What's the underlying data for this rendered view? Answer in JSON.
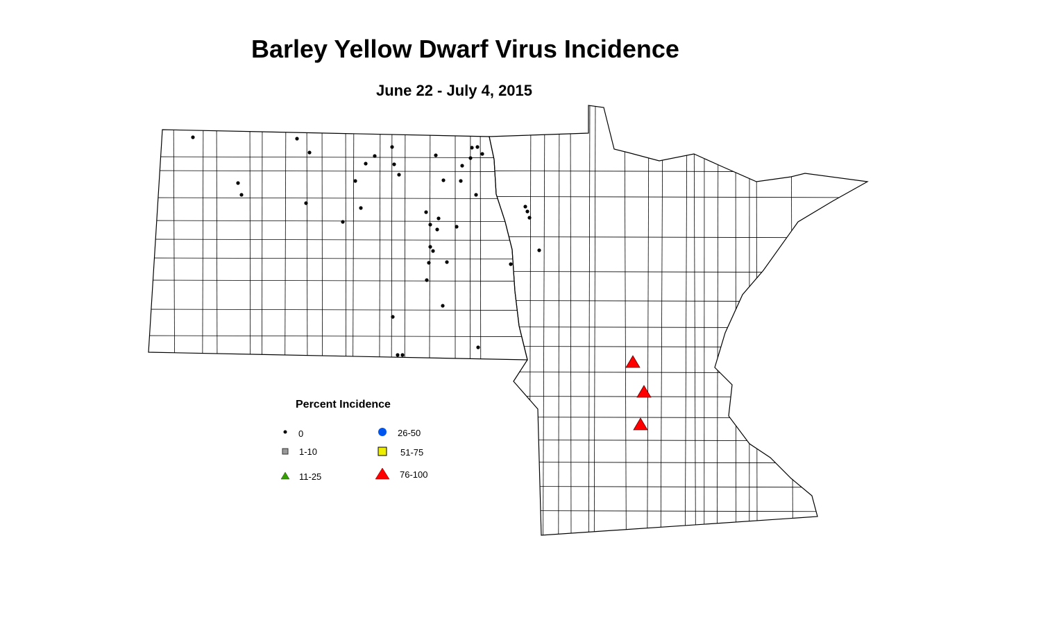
{
  "title": "Barley Yellow Dwarf Virus Incidence",
  "subtitle": "June 22 - July 4, 2015",
  "legend": {
    "title": "Percent Incidence",
    "classes": [
      {
        "label": "0",
        "symbol": "dot",
        "color": "#000000"
      },
      {
        "label": "1-10",
        "symbol": "square",
        "color": "#999999"
      },
      {
        "label": "11-25",
        "symbol": "triangle",
        "color": "#33a000"
      },
      {
        "label": "26-50",
        "symbol": "circle",
        "color": "#0055ee"
      },
      {
        "label": "51-75",
        "symbol": "square",
        "color": "#eeee00"
      },
      {
        "label": "76-100",
        "symbol": "triangle",
        "color": "#ff0000"
      }
    ]
  },
  "sites_summary": {
    "class_0_count": 43,
    "class_76_100_count": 3
  }
}
